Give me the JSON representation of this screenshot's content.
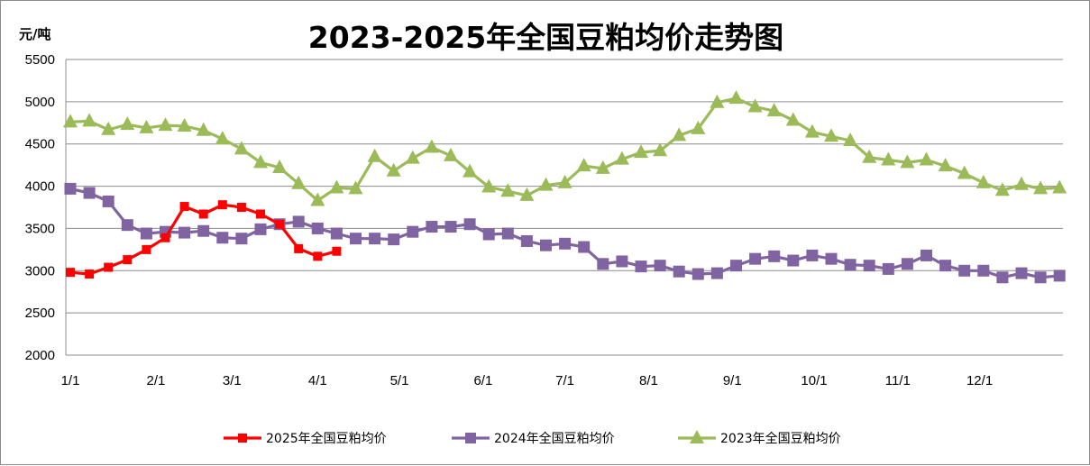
{
  "chart_data": {
    "type": "line",
    "title": "2023-2025年全国豆粕均价走势图",
    "ylabel": "元/吨",
    "ylim": [
      2000,
      5500
    ],
    "yticks": [
      2000,
      2500,
      3000,
      3500,
      4000,
      4500,
      5000,
      5500
    ],
    "x_tick_labels": [
      "1/1",
      "2/1",
      "3/1",
      "4/1",
      "5/1",
      "6/1",
      "7/1",
      "8/1",
      "9/1",
      "10/1",
      "11/1",
      "12/1"
    ],
    "grid": true,
    "legend_position": "bottom",
    "series": [
      {
        "name": "2025年全国豆粕均价",
        "color": "#ff0000",
        "marker": "square",
        "values": [
          2980,
          2960,
          3040,
          3130,
          3250,
          3390,
          3760,
          3670,
          3780,
          3750,
          3670,
          3550,
          3260,
          3170,
          3230
        ]
      },
      {
        "name": "2024年全国豆粕均价",
        "color": "#8064a2",
        "marker": "square",
        "values": [
          3970,
          3920,
          3820,
          3540,
          3440,
          3460,
          3450,
          3470,
          3390,
          3380,
          3490,
          3550,
          3580,
          3500,
          3440,
          3380,
          3380,
          3370,
          3460,
          3520,
          3520,
          3550,
          3430,
          3440,
          3350,
          3300,
          3320,
          3280,
          3080,
          3110,
          3050,
          3060,
          2990,
          2960,
          2970,
          3060,
          3140,
          3170,
          3120,
          3180,
          3140,
          3070,
          3060,
          3020,
          3080,
          3180,
          3060,
          3000,
          3000,
          2920,
          2970,
          2920,
          2940
        ]
      },
      {
        "name": "2023年全国豆粕均价",
        "color": "#9bbb59",
        "marker": "triangle",
        "values": [
          4760,
          4770,
          4670,
          4730,
          4690,
          4720,
          4710,
          4660,
          4560,
          4440,
          4280,
          4220,
          4030,
          3830,
          3980,
          3970,
          4350,
          4180,
          4330,
          4460,
          4360,
          4170,
          3990,
          3940,
          3890,
          4010,
          4040,
          4240,
          4210,
          4320,
          4400,
          4420,
          4600,
          4680,
          4990,
          5040,
          4940,
          4890,
          4780,
          4640,
          4590,
          4540,
          4340,
          4310,
          4280,
          4310,
          4240,
          4150,
          4040,
          3950,
          4020,
          3970,
          3980
        ]
      }
    ]
  }
}
